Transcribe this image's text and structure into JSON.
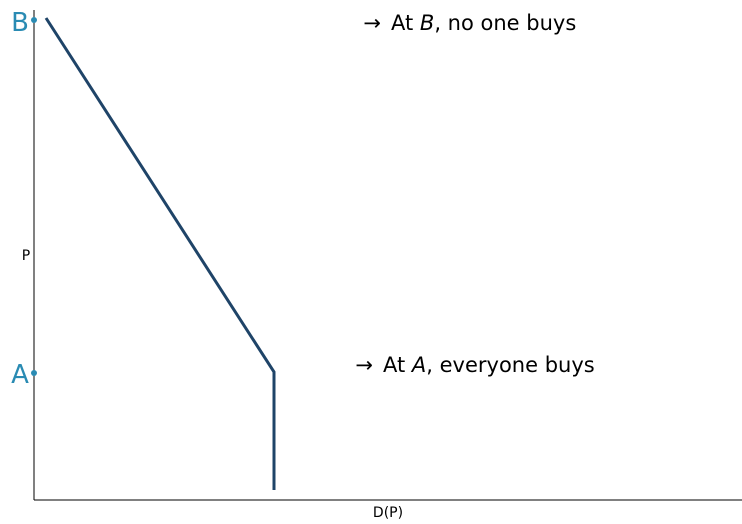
{
  "axes": {
    "y_label": "P",
    "x_label": "D(P)"
  },
  "points": [
    {
      "label": "B"
    },
    {
      "label": "A"
    }
  ],
  "annotations": [
    {
      "arrow": "→",
      "text_before": "At ",
      "variable": "B",
      "text_after": ", no one buys"
    },
    {
      "arrow": "→",
      "text_before": "At ",
      "variable": "A",
      "text_after": ", everyone buys"
    }
  ]
}
